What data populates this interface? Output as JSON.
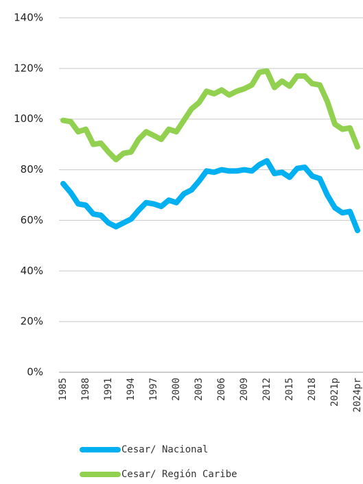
{
  "chart_data": {
    "type": "line",
    "categories": [
      "1985",
      null,
      null,
      "1988",
      null,
      null,
      "1991",
      null,
      null,
      "1994",
      null,
      null,
      "1997",
      null,
      null,
      "2000",
      null,
      null,
      "2003",
      null,
      null,
      "2006",
      null,
      null,
      "2009",
      null,
      null,
      "2012",
      null,
      null,
      "2015",
      null,
      null,
      "2018",
      null,
      null,
      "2021p",
      null,
      null,
      "2024pr"
    ],
    "series": [
      {
        "name": "Cesar/ Nacional",
        "color": "#00b0f0",
        "values": [
          74.5,
          71,
          66.5,
          66,
          62.5,
          62,
          59,
          57.5,
          59,
          60.5,
          64,
          67,
          66.5,
          65.5,
          68,
          67,
          70.5,
          72,
          75.5,
          79.5,
          79,
          80,
          79.5,
          79.5,
          80,
          79.5,
          82,
          83.5,
          78.5,
          79,
          77,
          80.5,
          81,
          77.5,
          76.5,
          70,
          65,
          63,
          63.5,
          56
        ]
      },
      {
        "name": "Cesar/ Región Caribe",
        "color": "#92d050",
        "values": [
          99.5,
          99,
          95,
          96,
          90,
          90.5,
          87,
          84,
          86.5,
          87,
          92,
          95,
          93.5,
          92,
          96,
          95,
          99.5,
          104,
          106.5,
          111,
          110,
          111.5,
          109.5,
          111,
          112,
          113.5,
          118.5,
          119,
          112.5,
          115,
          113,
          117,
          117,
          114,
          113.5,
          107,
          98,
          96,
          96.5,
          89
        ]
      }
    ],
    "ylim": [
      0,
      140
    ],
    "yticks": [
      {
        "value": 0,
        "label": "0%"
      },
      {
        "value": 20,
        "label": "20%"
      },
      {
        "value": 40,
        "label": "40%"
      },
      {
        "value": 60,
        "label": "60%"
      },
      {
        "value": 80,
        "label": "80%"
      },
      {
        "value": 100,
        "label": "100%"
      },
      {
        "value": 120,
        "label": "120%"
      },
      {
        "value": 140,
        "label": "140%"
      }
    ],
    "grid": true,
    "legend": "bottom"
  }
}
